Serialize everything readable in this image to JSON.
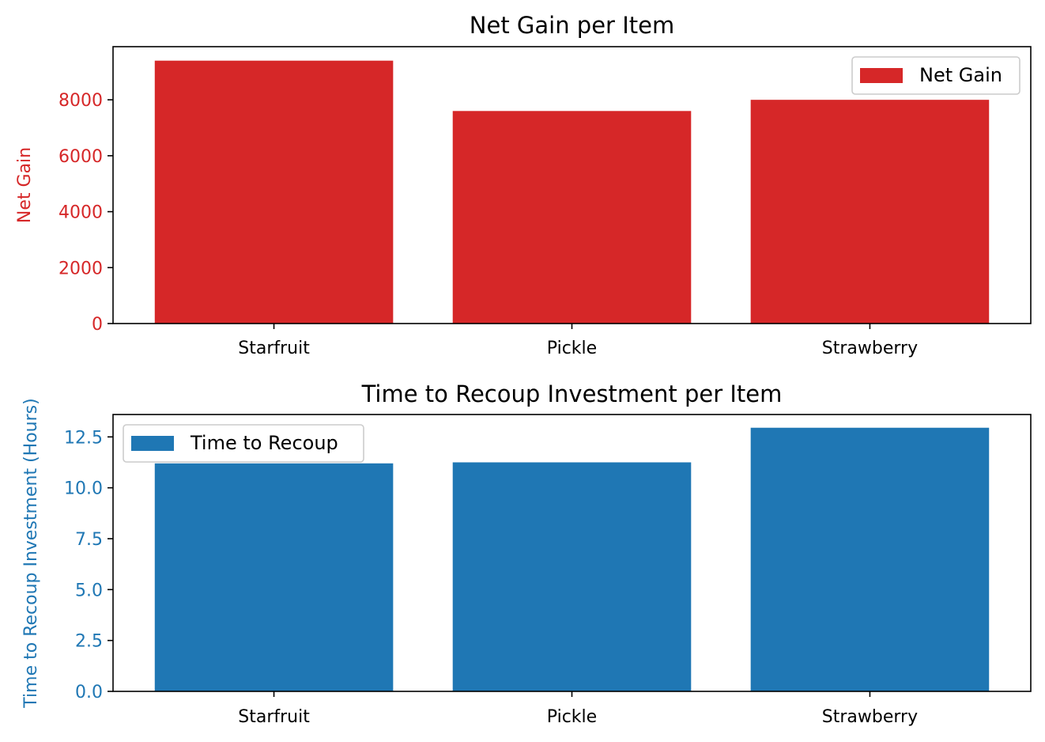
{
  "chart_data": [
    {
      "type": "bar",
      "title": "Net Gain per Item",
      "categories": [
        "Starfruit",
        "Pickle",
        "Strawberry"
      ],
      "series": [
        {
          "name": "Net Gain",
          "values": [
            9400,
            7600,
            8000
          ]
        }
      ],
      "xlabel": "",
      "ylabel": "Net Gain",
      "ylim": [
        0,
        9900
      ],
      "yticks": [
        0,
        2000,
        4000,
        6000,
        8000
      ],
      "ytick_labels": [
        "0",
        "2000",
        "4000",
        "6000",
        "8000"
      ],
      "color": "#d62728",
      "legend": "upper right",
      "grid": false
    },
    {
      "type": "bar",
      "title": "Time to Recoup Investment per Item",
      "categories": [
        "Starfruit",
        "Pickle",
        "Strawberry"
      ],
      "series": [
        {
          "name": "Time to Recoup",
          "values": [
            11.2,
            11.25,
            12.95
          ]
        }
      ],
      "xlabel": "",
      "ylabel": "Time to Recoup Investment (Hours)",
      "ylim": [
        0,
        13.6
      ],
      "yticks": [
        0,
        2.5,
        5,
        7.5,
        10,
        12.5
      ],
      "ytick_labels": [
        "0.0",
        "2.5",
        "5.0",
        "7.5",
        "10.0",
        "12.5"
      ],
      "color": "#1f77b4",
      "legend": "upper left",
      "grid": false
    }
  ]
}
